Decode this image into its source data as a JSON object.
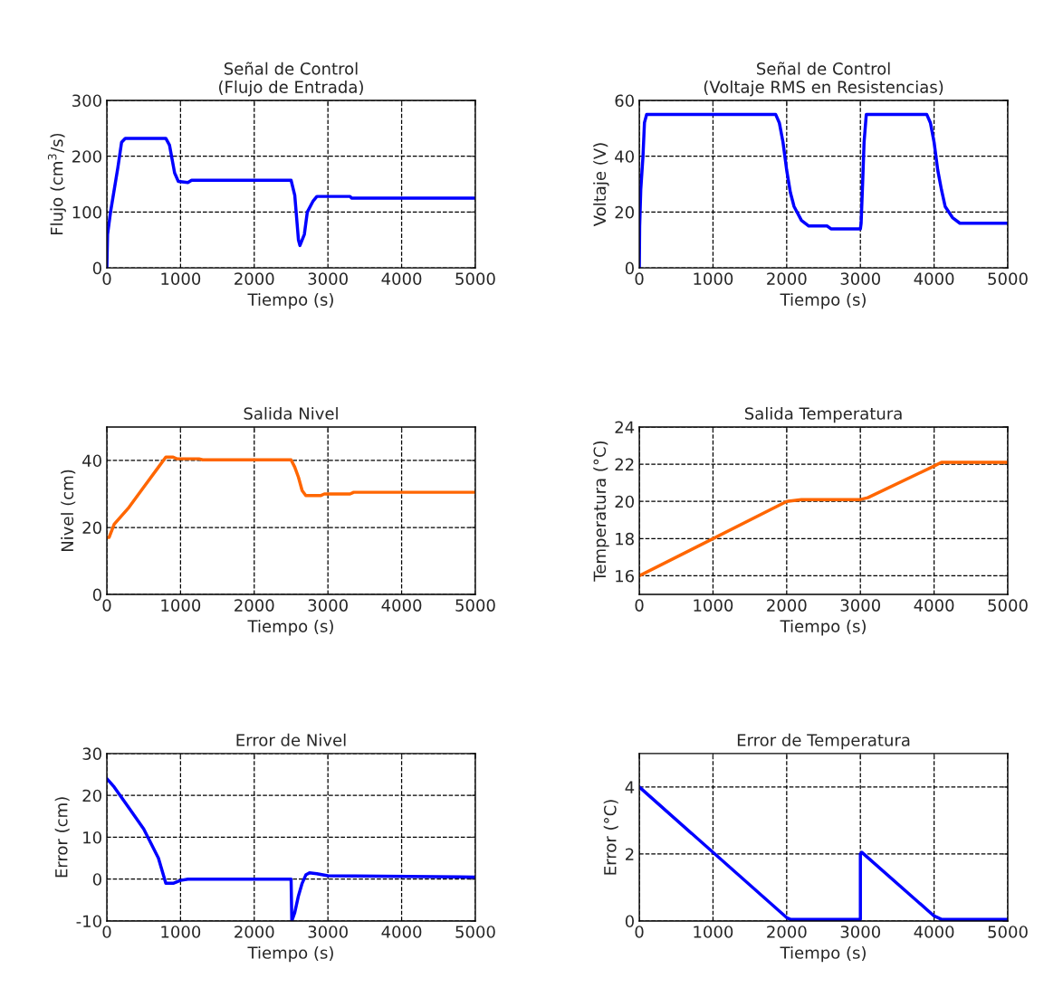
{
  "chart_data": [
    {
      "type": "line",
      "title": "Señal de Control\n(Flujo de Entrada)",
      "xlabel": "Tiempo (s)",
      "ylabel": "Flujo (cm$^{3}$/s)",
      "xlim": [
        0,
        5000
      ],
      "ylim": [
        0,
        300
      ],
      "xticks": [
        0,
        1000,
        2000,
        3000,
        4000,
        5000
      ],
      "yticks": [
        0,
        100,
        200,
        300
      ],
      "grid": true,
      "series": [
        {
          "color": "#0000ff",
          "x": [
            0,
            10,
            50,
            150,
            200,
            250,
            800,
            850,
            920,
            970,
            1100,
            1150,
            2500,
            2550,
            2600,
            2620,
            2680,
            2720,
            2800,
            2850,
            3300,
            3320,
            5000
          ],
          "values": [
            0,
            60,
            100,
            180,
            225,
            232,
            232,
            220,
            170,
            155,
            153,
            157,
            157,
            130,
            50,
            40,
            60,
            100,
            120,
            128,
            128,
            125,
            125
          ]
        }
      ]
    },
    {
      "type": "line",
      "title": "Señal de Control\n(Voltaje RMS en Resistencias)",
      "xlabel": "Tiempo (s)",
      "ylabel": "Voltaje (V)",
      "xlim": [
        0,
        5000
      ],
      "ylim": [
        0,
        60
      ],
      "xticks": [
        0,
        1000,
        2000,
        3000,
        4000,
        5000
      ],
      "yticks": [
        0,
        20,
        40,
        60
      ],
      "grid": true,
      "series": [
        {
          "color": "#0000ff",
          "x": [
            0,
            5,
            20,
            50,
            70,
            100,
            1850,
            1900,
            1950,
            2000,
            2050,
            2100,
            2200,
            2300,
            2550,
            2600,
            3000,
            3010,
            3030,
            3050,
            3080,
            3900,
            3950,
            4000,
            4050,
            4100,
            4150,
            4250,
            4350,
            5000
          ],
          "values": [
            0,
            15,
            28,
            40,
            52,
            55,
            55,
            52,
            45,
            35,
            27,
            22,
            17,
            15,
            15,
            14,
            14,
            16,
            30,
            45,
            55,
            55,
            52,
            45,
            35,
            28,
            22,
            18,
            16,
            16
          ]
        }
      ]
    },
    {
      "type": "line",
      "title": "Salida Nivel",
      "xlabel": "Tiempo (s)",
      "ylabel": "Nivel (cm)",
      "xlim": [
        0,
        5000
      ],
      "ylim": [
        0,
        50
      ],
      "xticks": [
        0,
        1000,
        2000,
        3000,
        4000,
        5000
      ],
      "yticks": [
        0,
        20,
        40
      ],
      "grid": true,
      "series": [
        {
          "color": "#ff6600",
          "x": [
            0,
            30,
            100,
            300,
            500,
            700,
            800,
            900,
            950,
            1250,
            1300,
            2500,
            2550,
            2600,
            2650,
            2700,
            2900,
            2950,
            3300,
            3350,
            5000
          ],
          "values": [
            17,
            17,
            21,
            26,
            32,
            38,
            41,
            41,
            40.5,
            40.5,
            40.2,
            40.2,
            38,
            35,
            31,
            29.5,
            29.5,
            30,
            30,
            30.5,
            30.5
          ]
        }
      ]
    },
    {
      "type": "line",
      "title": "Salida Temperatura",
      "xlabel": "Tiempo (s)",
      "ylabel": "Temperatura (°C)",
      "xlim": [
        0,
        5000
      ],
      "ylim": [
        15,
        24
      ],
      "xticks": [
        0,
        1000,
        2000,
        3000,
        4000,
        5000
      ],
      "yticks": [
        16,
        18,
        20,
        22,
        24
      ],
      "grid": true,
      "series": [
        {
          "color": "#ff6600",
          "x": [
            0,
            2000,
            2200,
            3000,
            3100,
            4000,
            4100,
            5000
          ],
          "values": [
            16,
            20,
            20.1,
            20.1,
            20.2,
            21.9,
            22.1,
            22.1
          ]
        }
      ]
    },
    {
      "type": "line",
      "title": "Error de Nivel",
      "xlabel": "Tiempo (s)",
      "ylabel": "Error (cm)",
      "xlim": [
        0,
        5000
      ],
      "ylim": [
        -10,
        30
      ],
      "xticks": [
        0,
        1000,
        2000,
        3000,
        4000,
        5000
      ],
      "yticks": [
        -10,
        0,
        10,
        20,
        30
      ],
      "grid": true,
      "series": [
        {
          "color": "#0000ff",
          "x": [
            0,
            100,
            300,
            500,
            700,
            800,
            900,
            1000,
            1100,
            2500,
            2510,
            2550,
            2600,
            2650,
            2700,
            2750,
            2850,
            3000,
            5000
          ],
          "values": [
            24,
            22,
            17,
            12,
            5,
            -1,
            -1,
            -0.3,
            0,
            0,
            -10,
            -8,
            -4,
            -1,
            1,
            1.5,
            1.3,
            0.8,
            0.5
          ]
        }
      ]
    },
    {
      "type": "line",
      "title": "Error de Temperatura",
      "xlabel": "Tiempo (s)",
      "ylabel": "Error (°C)",
      "xlim": [
        0,
        5000
      ],
      "ylim": [
        0,
        5
      ],
      "xticks": [
        0,
        1000,
        2000,
        3000,
        4000,
        5000
      ],
      "yticks": [
        0,
        2,
        4
      ],
      "grid": true,
      "series": [
        {
          "color": "#0000ff",
          "x": [
            0,
            2000,
            2050,
            3000,
            3000,
            3020,
            4000,
            4100,
            5000
          ],
          "values": [
            4,
            0.1,
            0.05,
            0.05,
            2,
            2.05,
            0.15,
            0.05,
            0.05
          ]
        }
      ]
    }
  ]
}
